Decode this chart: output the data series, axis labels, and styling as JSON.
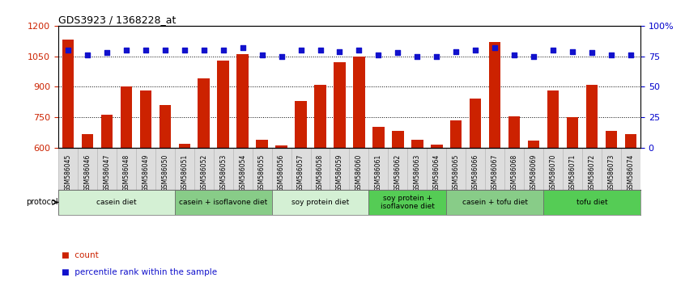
{
  "title": "GDS3923 / 1368228_at",
  "samples": [
    "GSM586045",
    "GSM586046",
    "GSM586047",
    "GSM586048",
    "GSM586049",
    "GSM586050",
    "GSM586051",
    "GSM586052",
    "GSM586053",
    "GSM586054",
    "GSM586055",
    "GSM586056",
    "GSM586057",
    "GSM586058",
    "GSM586059",
    "GSM586060",
    "GSM586061",
    "GSM586062",
    "GSM586063",
    "GSM586064",
    "GSM586065",
    "GSM586066",
    "GSM586067",
    "GSM586068",
    "GSM586069",
    "GSM586070",
    "GSM586071",
    "GSM586072",
    "GSM586073",
    "GSM586074"
  ],
  "counts": [
    1130,
    665,
    760,
    900,
    880,
    810,
    620,
    940,
    1030,
    1060,
    640,
    610,
    830,
    910,
    1020,
    1050,
    700,
    680,
    640,
    615,
    735,
    840,
    1120,
    755,
    635,
    880,
    750,
    910,
    680,
    665
  ],
  "percentile_ranks": [
    80,
    76,
    78,
    80,
    80,
    80,
    80,
    80,
    80,
    82,
    76,
    75,
    80,
    80,
    79,
    80,
    76,
    78,
    75,
    75,
    79,
    80,
    82,
    76,
    75,
    80,
    79,
    78,
    76,
    76
  ],
  "protocols": [
    {
      "label": "casein diet",
      "start": 0,
      "end": 6,
      "color": "#d4f0d4"
    },
    {
      "label": "casein + isoflavone diet",
      "start": 6,
      "end": 11,
      "color": "#88cc88"
    },
    {
      "label": "soy protein diet",
      "start": 11,
      "end": 16,
      "color": "#d4f0d4"
    },
    {
      "label": "soy protein +\nisoflavone diet",
      "start": 16,
      "end": 20,
      "color": "#55cc55"
    },
    {
      "label": "casein + tofu diet",
      "start": 20,
      "end": 25,
      "color": "#88cc88"
    },
    {
      "label": "tofu diet",
      "start": 25,
      "end": 30,
      "color": "#55cc55"
    }
  ],
  "ylim_left": [
    600,
    1200
  ],
  "ylim_right": [
    0,
    100
  ],
  "bar_color": "#cc2200",
  "dot_color": "#1111cc",
  "grid_color": "#000000",
  "background_color": "#ffffff",
  "left_tick_color": "#cc2200",
  "right_tick_color": "#0000cc",
  "xtick_bg": "#dddddd"
}
